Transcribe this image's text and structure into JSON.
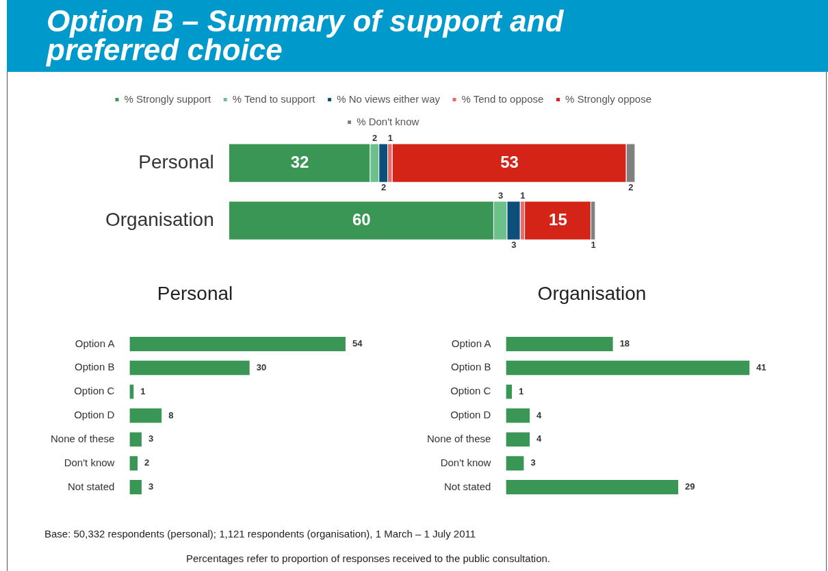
{
  "chart_data": [
    {
      "type": "bar",
      "orientation": "horizontal",
      "stacked": true,
      "title": "Option B – Summary of support and preferred choice",
      "categories": [
        "Personal",
        "Organisation"
      ],
      "series": [
        {
          "name": "% Strongly support",
          "color": "#3a9655",
          "values": [
            32,
            60
          ]
        },
        {
          "name": "% Tend to support",
          "color": "#6cc08a",
          "values": [
            2,
            3
          ]
        },
        {
          "name": "% No views either way",
          "color": "#0b4f7a",
          "values": [
            2,
            3
          ]
        },
        {
          "name": "% Tend to oppose",
          "color": "#e86a6a",
          "values": [
            1,
            1
          ]
        },
        {
          "name": "% Strongly oppose",
          "color": "#d42418",
          "values": [
            53,
            15
          ]
        },
        {
          "name": "% Don't know",
          "color": "#808080",
          "values": [
            2,
            1
          ]
        }
      ],
      "data_labels": true,
      "legend": "top",
      "grid": false
    },
    {
      "type": "bar",
      "orientation": "horizontal",
      "title": "Personal",
      "categories": [
        "Option A",
        "Option B",
        "Option C",
        "Option D",
        "None of these",
        "Don't know",
        "Not stated"
      ],
      "values": [
        54,
        30,
        1,
        8,
        3,
        2,
        3
      ],
      "color": "#3a9655",
      "data_labels": true,
      "grid": false
    },
    {
      "type": "bar",
      "orientation": "horizontal",
      "title": "Organisation",
      "categories": [
        "Option A",
        "Option B",
        "Option C",
        "Option D",
        "None of these",
        "Don't know",
        "Not stated"
      ],
      "values": [
        18,
        41,
        1,
        4,
        4,
        3,
        29
      ],
      "color": "#3a9655",
      "data_labels": true,
      "grid": false,
      "annotations": [
        "Base: 50,332 respondents (personal); 1,121 respondents (organisation), 1 March – 1 July 2011",
        "Percentages refer to proportion of responses received to the public consultation."
      ]
    }
  ]
}
